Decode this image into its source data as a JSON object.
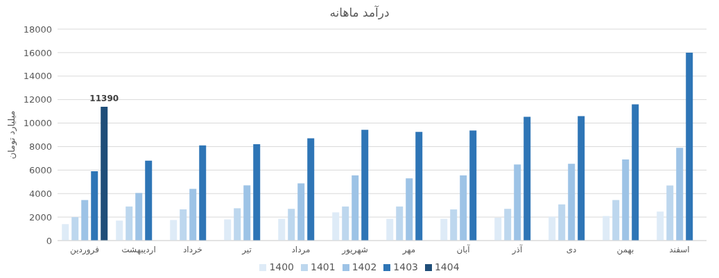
{
  "chart_data": {
    "type": "bar",
    "title": "درآمد ماهانه",
    "ylabel": "میلیارد تومان",
    "categories": [
      "فروردین",
      "اردیبهشت",
      "خرداد",
      "تیر",
      "مرداد",
      "شهریور",
      "مهر",
      "آبان",
      "آذر",
      "دی",
      "بهمن",
      "اسفند"
    ],
    "series": [
      {
        "name": "1400",
        "color": "#deebf7",
        "values": [
          1400,
          1700,
          1750,
          1800,
          1850,
          2400,
          1850,
          1850,
          1950,
          2030,
          2090,
          2470
        ]
      },
      {
        "name": "1401",
        "color": "#bdd7ee",
        "values": [
          2000,
          2900,
          2650,
          2750,
          2700,
          2900,
          2900,
          2650,
          2700,
          3080,
          3450,
          4690
        ]
      },
      {
        "name": "1402",
        "color": "#9dc3e6",
        "values": [
          3450,
          4050,
          4400,
          4700,
          4870,
          5550,
          5300,
          5550,
          6470,
          6530,
          6900,
          7890
        ]
      },
      {
        "name": "1403",
        "color": "#2e75b6",
        "values": [
          5900,
          6800,
          8100,
          8200,
          8700,
          9430,
          9250,
          9370,
          10540,
          10600,
          11590,
          16000
        ]
      },
      {
        "name": "1404",
        "color": "#1f4e79",
        "values": [
          11390,
          null,
          null,
          null,
          null,
          null,
          null,
          null,
          null,
          null,
          null,
          null
        ],
        "value_labels": [
          "11390",
          null,
          null,
          null,
          null,
          null,
          null,
          null,
          null,
          null,
          null,
          null
        ]
      }
    ],
    "ylim": [
      0,
      18000
    ],
    "yticks": [
      0,
      2000,
      4000,
      6000,
      8000,
      10000,
      12000,
      14000,
      16000,
      18000
    ],
    "grid": "y",
    "legend": "bottom"
  }
}
